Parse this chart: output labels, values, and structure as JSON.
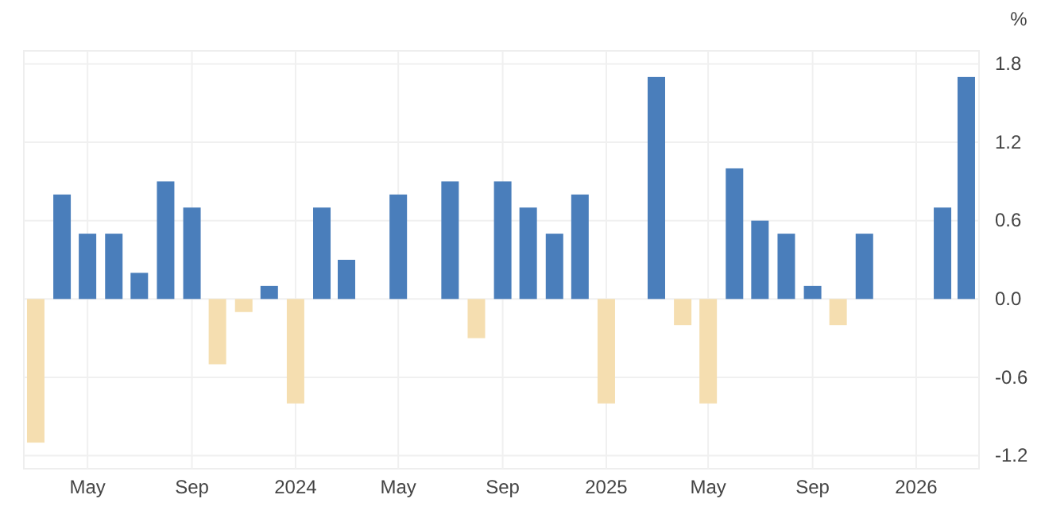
{
  "chart_data": {
    "type": "bar",
    "ylabel": "%",
    "x": [
      "2023-03",
      "2023-04",
      "2023-05",
      "2023-06",
      "2023-07",
      "2023-08",
      "2023-09",
      "2023-10",
      "2023-11",
      "2023-12",
      "2024-01",
      "2024-02",
      "2024-03",
      "2024-04",
      "2024-05",
      "2024-06",
      "2024-07",
      "2024-08",
      "2024-09",
      "2024-10",
      "2024-11",
      "2024-12",
      "2025-01",
      "2025-02",
      "2025-03",
      "2025-04",
      "2025-05",
      "2025-06",
      "2025-07",
      "2025-08",
      "2025-09",
      "2025-10",
      "2025-11",
      "2025-12",
      "2026-01",
      "2026-02",
      "2026-03"
    ],
    "values": [
      -1.1,
      0.8,
      0.5,
      0.5,
      0.2,
      0.9,
      0.7,
      -0.5,
      -0.1,
      0.1,
      -0.8,
      0.7,
      0.3,
      0.0,
      0.8,
      0.0,
      0.9,
      -0.3,
      0.9,
      0.7,
      0.5,
      0.8,
      -0.8,
      0.0,
      1.7,
      -0.2,
      -0.8,
      1.0,
      0.6,
      0.5,
      0.1,
      -0.2,
      0.5,
      0.0,
      0.0,
      0.7,
      1.7
    ],
    "colors": [
      "#f5deb0",
      "#4a7ebb",
      "#4a7ebb",
      "#4a7ebb",
      "#4a7ebb",
      "#4a7ebb",
      "#4a7ebb",
      "#f5deb0",
      "#f5deb0",
      "#4a7ebb",
      "#f5deb0",
      "#4a7ebb",
      "#4a7ebb",
      "#3b5a86",
      "#4a7ebb",
      "#3b5a86",
      "#4a7ebb",
      "#f5deb0",
      "#4a7ebb",
      "#4a7ebb",
      "#4a7ebb",
      "#4a7ebb",
      "#f5deb0",
      "#3b5a86",
      "#4a7ebb",
      "#f5deb0",
      "#f5deb0",
      "#4a7ebb",
      "#4a7ebb",
      "#4a7ebb",
      "#4a7ebb",
      "#f5deb0",
      "#4a7ebb",
      "#3b5a86",
      "#3b5a86",
      "#4a7ebb",
      "#4a7ebb"
    ],
    "xlim": [
      "2023-02-15",
      "2026-03-16"
    ],
    "xticks": [
      {
        "value": "2023-05",
        "label": "May"
      },
      {
        "value": "2023-09",
        "label": "Sep"
      },
      {
        "value": "2024-01",
        "label": "2024"
      },
      {
        "value": "2024-05",
        "label": "May"
      },
      {
        "value": "2024-09",
        "label": "Sep"
      },
      {
        "value": "2025-01",
        "label": "2025"
      },
      {
        "value": "2025-05",
        "label": "May"
      },
      {
        "value": "2025-09",
        "label": "Sep"
      },
      {
        "value": "2026-01",
        "label": "2026"
      }
    ],
    "ylim": [
      -1.3,
      1.9
    ],
    "yticks": [
      -1.2,
      -0.6,
      {
        "value": 0,
        "label": "0.0"
      },
      0.6,
      1.2,
      1.8
    ],
    "grid": true
  }
}
